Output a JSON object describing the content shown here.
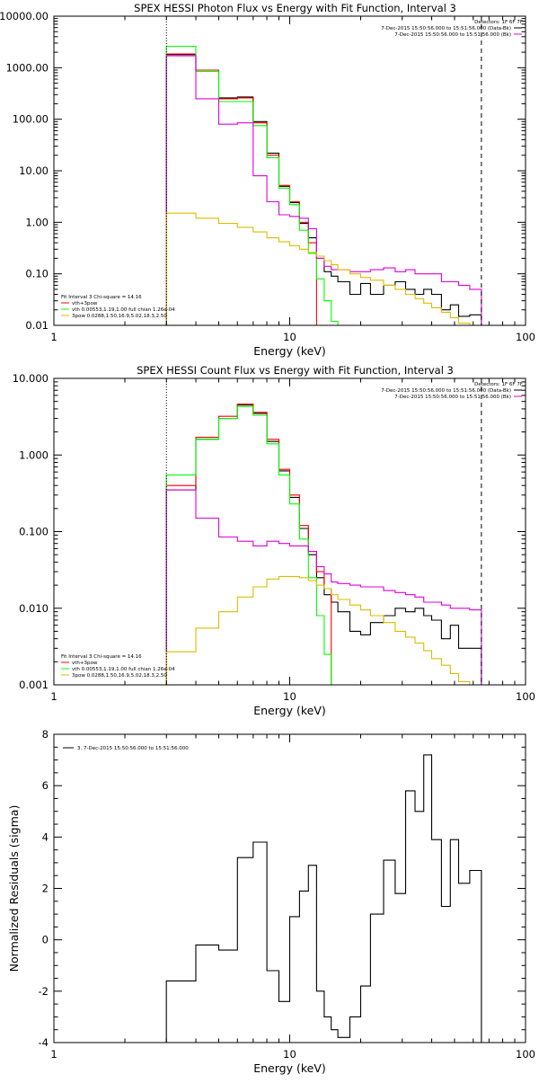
{
  "chart_data": [
    {
      "type": "line",
      "title": "SPEX HESSI Photon Flux vs Energy with Fit Function, Interval 3",
      "xlabel": "Energy (keV)",
      "ylabel": "",
      "xscale": "log",
      "yscale": "log",
      "xlim": [
        1,
        100
      ],
      "ylim": [
        0.01,
        10000
      ],
      "x_ticks": [
        1,
        10,
        100
      ],
      "x_tick_labels": [
        "1",
        "10",
        "100"
      ],
      "y_ticks": [
        0.01,
        0.1,
        1,
        10,
        100,
        1000,
        10000
      ],
      "y_tick_labels": [
        "0.01",
        "0.10",
        "1.00",
        "10.00",
        "100.00",
        "1000.00",
        "10000.00"
      ],
      "header": [
        "Detectors: 1F 6F 7F",
        "7-Dec-2015 15:50:56.000 to 15:51:56.000 (Data-Bk)",
        "7-Dec-2015 15:50:56.000 to 15:51:56.000 (Bk)"
      ],
      "legend": [
        "Fit Interval 3   Chi-square = 14.16",
        "vth+3pow",
        "vth 0.00553,1.19,1.00  full chian 1.26e-04",
        "3pow 0.0288,1.50,16.9,5.02,18.3,2.50"
      ],
      "vlines": [
        {
          "x": 3,
          "style": "dotted"
        },
        {
          "x": 65,
          "style": "dashed"
        }
      ],
      "series": [
        {
          "color": "#000000",
          "edges": [
            3,
            4,
            5,
            6,
            7,
            8,
            9,
            10,
            11,
            12,
            13,
            14,
            15,
            16,
            18,
            20,
            22,
            25,
            28,
            31,
            34,
            37,
            40,
            44,
            48,
            52,
            58,
            65
          ],
          "values": [
            1800,
            900,
            260,
            270,
            90,
            22,
            5,
            2.4,
            0.95,
            0.5,
            0.2,
            0.11,
            0.09,
            0.07,
            0.04,
            0.065,
            0.04,
            0.06,
            0.07,
            0.05,
            0.04,
            0.05,
            0.04,
            0.02,
            0.025,
            0.015,
            0.016
          ]
        },
        {
          "color": "#ff0000",
          "edges": [
            3,
            4,
            5,
            6,
            7,
            8,
            9,
            10,
            11,
            12,
            13
          ],
          "values": [
            1850,
            900,
            250,
            260,
            85,
            20,
            5.2,
            2.5,
            1.0,
            0.4
          ]
        },
        {
          "color": "#00ff00",
          "edges": [
            3,
            4,
            5,
            6,
            7,
            8,
            9,
            10,
            11,
            12,
            13,
            14,
            15,
            16
          ],
          "values": [
            2600,
            850,
            220,
            220,
            75,
            18,
            4.6,
            2.2,
            0.7,
            0.25,
            0.08,
            0.03,
            0.012
          ]
        },
        {
          "color": "#dd00dd",
          "edges": [
            3,
            4,
            5,
            6,
            7,
            8,
            9,
            10,
            11,
            12,
            13,
            14,
            15,
            16,
            18,
            20,
            22,
            25,
            28,
            31,
            34,
            37,
            40,
            44,
            48,
            52,
            58,
            65
          ],
          "values": [
            1700,
            250,
            80,
            85,
            8,
            2.5,
            1.4,
            1.3,
            1.2,
            0.75,
            0.2,
            0.14,
            0.12,
            0.12,
            0.11,
            0.11,
            0.12,
            0.13,
            0.11,
            0.12,
            0.1,
            0.1,
            0.1,
            0.07,
            0.07,
            0.06,
            0.05
          ]
        },
        {
          "color": "#ddbb00",
          "edges": [
            3,
            4,
            5,
            6,
            7,
            8,
            9,
            10,
            11,
            12,
            13,
            14,
            15,
            16,
            18,
            20,
            22,
            25,
            28,
            31,
            34,
            37,
            40,
            44,
            48,
            52,
            58,
            65
          ],
          "values": [
            1.5,
            1.2,
            0.95,
            0.8,
            0.65,
            0.5,
            0.42,
            0.35,
            0.3,
            0.26,
            0.22,
            0.18,
            0.15,
            0.12,
            0.1,
            0.085,
            0.075,
            0.06,
            0.05,
            0.04,
            0.033,
            0.027,
            0.022,
            0.018,
            0.014,
            0.011,
            0.01
          ]
        }
      ]
    },
    {
      "type": "line",
      "title": "SPEX HESSI Count Flux vs Energy with Fit Function, Interval 3",
      "xlabel": "Energy (keV)",
      "ylabel": "",
      "xscale": "log",
      "yscale": "log",
      "xlim": [
        1,
        100
      ],
      "ylim": [
        0.001,
        10
      ],
      "x_ticks": [
        1,
        10,
        100
      ],
      "x_tick_labels": [
        "1",
        "10",
        "100"
      ],
      "y_ticks": [
        0.001,
        0.01,
        0.1,
        1,
        10
      ],
      "y_tick_labels": [
        "0.001",
        "0.010",
        "0.100",
        "1.000",
        "10.000"
      ],
      "header": [
        "Detectors: 1F 6F 7F",
        "7-Dec-2015 15:50:56.000 to 15:51:56.000 (Data-Bk)",
        "7-Dec-2015 15:50:56.000 to 15:51:56.000 (Bk)"
      ],
      "legend": [
        "Fit Interval 3   Chi-square = 14.16",
        "vth+3pow",
        "vth 0.00553,1.19,1.00  full chian 1.26e-04",
        "3pow 0.0288,1.50,16.9,5.02,18.3,2.50"
      ],
      "vlines": [
        {
          "x": 3,
          "style": "dotted"
        },
        {
          "x": 65,
          "style": "dashed"
        }
      ],
      "series": [
        {
          "color": "#000000",
          "edges": [
            3,
            4,
            5,
            6,
            7,
            8,
            9,
            10,
            11,
            12,
            13,
            14,
            15,
            16,
            18,
            20,
            22,
            25,
            28,
            31,
            34,
            37,
            40,
            44,
            48,
            52,
            58,
            65
          ],
          "values": [
            0.35,
            1.6,
            3.0,
            4.5,
            3.5,
            1.5,
            0.62,
            0.28,
            0.11,
            0.05,
            0.025,
            0.015,
            0.012,
            0.009,
            0.005,
            0.0045,
            0.0065,
            0.008,
            0.01,
            0.009,
            0.01,
            0.008,
            0.007,
            0.004,
            0.006,
            0.003,
            0.003
          ]
        },
        {
          "color": "#ff0000",
          "edges": [
            3,
            4,
            5,
            6,
            7,
            8,
            9,
            10,
            11,
            12,
            13,
            14,
            15
          ],
          "values": [
            0.4,
            1.7,
            3.2,
            4.6,
            3.6,
            1.6,
            0.65,
            0.3,
            0.12,
            0.055,
            0.03,
            0.018
          ]
        },
        {
          "color": "#00ff00",
          "edges": [
            3,
            4,
            5,
            6,
            7,
            8,
            9,
            10,
            11,
            12,
            13,
            14,
            15,
            16
          ],
          "values": [
            0.55,
            1.6,
            3.0,
            4.3,
            3.3,
            1.4,
            0.55,
            0.23,
            0.08,
            0.025,
            0.008,
            0.0025,
            0.0008
          ]
        },
        {
          "color": "#dd00dd",
          "edges": [
            3,
            4,
            5,
            6,
            7,
            8,
            9,
            10,
            11,
            12,
            13,
            14,
            15,
            16,
            18,
            20,
            22,
            25,
            28,
            31,
            34,
            37,
            40,
            44,
            48,
            52,
            58,
            65
          ],
          "values": [
            0.35,
            0.15,
            0.085,
            0.075,
            0.065,
            0.075,
            0.07,
            0.065,
            0.065,
            0.055,
            0.035,
            0.028,
            0.022,
            0.021,
            0.02,
            0.019,
            0.019,
            0.017,
            0.016,
            0.015,
            0.014,
            0.012,
            0.012,
            0.011,
            0.01,
            0.01,
            0.0095
          ]
        },
        {
          "color": "#ddbb00",
          "edges": [
            3,
            4,
            5,
            6,
            7,
            8,
            9,
            10,
            11,
            12,
            13,
            14,
            15,
            16,
            18,
            20,
            22,
            25,
            28,
            31,
            34,
            37,
            40,
            44,
            48,
            52,
            58,
            65
          ],
          "values": [
            0.0027,
            0.0055,
            0.009,
            0.014,
            0.019,
            0.024,
            0.026,
            0.026,
            0.025,
            0.023,
            0.02,
            0.018,
            0.015,
            0.013,
            0.011,
            0.0095,
            0.008,
            0.0065,
            0.005,
            0.0042,
            0.0035,
            0.0028,
            0.0022,
            0.0018,
            0.0014,
            0.0011,
            0.0009
          ]
        }
      ]
    },
    {
      "type": "line",
      "title": "",
      "xlabel": "Energy (keV)",
      "ylabel": "Normalized Residuals (sigma)",
      "xscale": "log",
      "yscale": "linear",
      "xlim": [
        1,
        100
      ],
      "ylim": [
        -4,
        8
      ],
      "x_ticks": [
        1,
        10,
        100
      ],
      "x_tick_labels": [
        "1",
        "10",
        "100"
      ],
      "y_ticks": [
        -4,
        -2,
        0,
        2,
        4,
        6,
        8
      ],
      "y_tick_labels": [
        "-4",
        "-2",
        "0",
        "2",
        "4",
        "6",
        "8"
      ],
      "legend": [
        "3.  7-Dec-2015 15:50:56.000 to 15:51:56.000"
      ],
      "series": [
        {
          "color": "#000000",
          "edges": [
            3,
            4,
            5,
            6,
            7,
            8,
            9,
            10,
            11,
            12,
            13,
            14,
            15,
            16,
            18,
            20,
            22,
            25,
            28,
            31,
            34,
            37,
            40,
            44,
            48,
            52,
            58,
            65
          ],
          "values": [
            -1.6,
            -0.2,
            -0.4,
            3.2,
            3.8,
            -1.2,
            -2.4,
            0.9,
            1.9,
            2.9,
            -2.0,
            -3.0,
            -3.5,
            -3.8,
            -3.0,
            -1.8,
            1.0,
            3.1,
            1.8,
            5.8,
            5.0,
            7.2,
            3.9,
            1.3,
            3.9,
            2.2,
            2.7
          ]
        }
      ]
    }
  ]
}
